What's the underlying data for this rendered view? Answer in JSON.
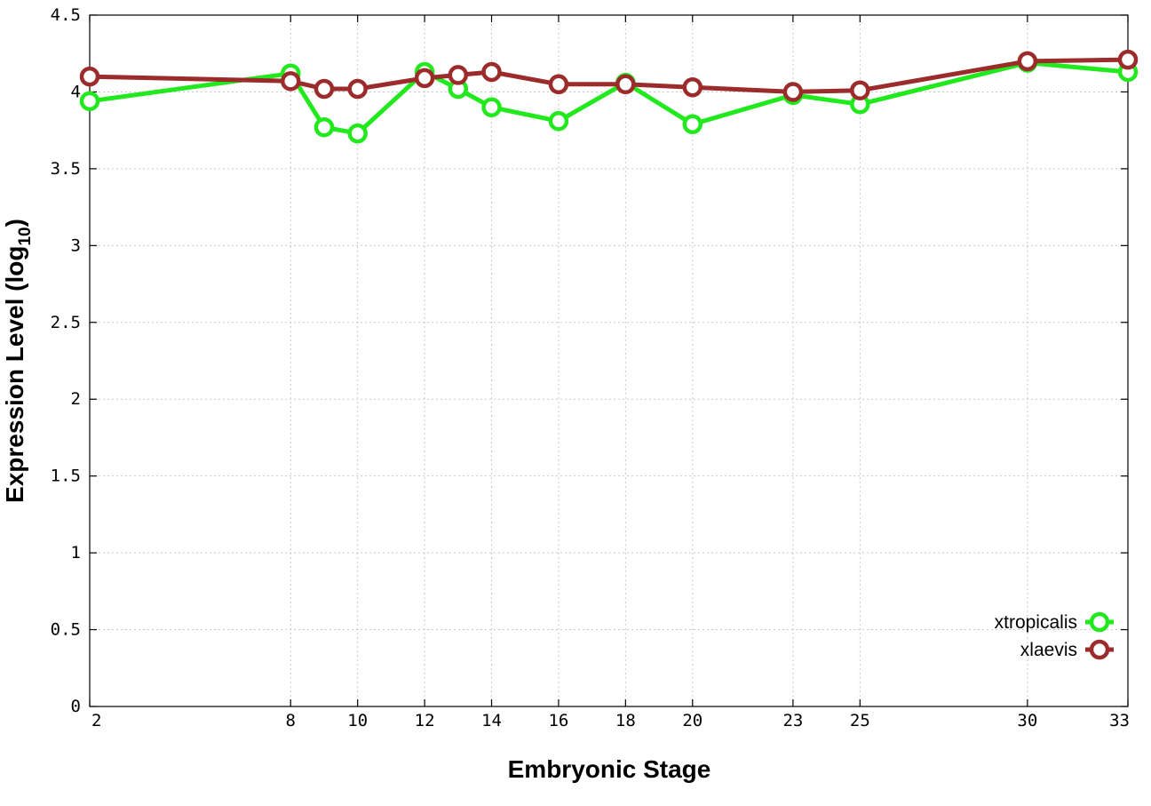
{
  "chart_data": {
    "type": "line",
    "x": [
      2,
      8,
      9,
      10,
      12,
      13,
      14,
      16,
      18,
      20,
      23,
      25,
      30,
      33
    ],
    "x_tick_labels": [
      "2",
      "8",
      "10",
      "12",
      "14",
      "16",
      "18",
      "20",
      "23",
      "25",
      "30",
      "33"
    ],
    "y_tick_labels": [
      "0",
      "0.5",
      "1",
      "1.5",
      "2",
      "2.5",
      "3",
      "3.5",
      "4",
      "4.5"
    ],
    "xlabel": "Embryonic Stage",
    "ylabel_main": "Expression Level (log",
    "ylabel_sub": "10",
    "ylabel_close": ")",
    "ylim": [
      0,
      4.5
    ],
    "grid": true,
    "legend_position": "bottom-right",
    "series": [
      {
        "name": "xtropicalis",
        "color": "#22e81e",
        "values": [
          3.94,
          4.12,
          3.77,
          3.73,
          4.13,
          4.02,
          3.9,
          3.81,
          4.06,
          3.79,
          3.98,
          3.92,
          4.19,
          4.13
        ]
      },
      {
        "name": "xlaevis",
        "color": "#9c2b2b",
        "values": [
          4.1,
          4.07,
          4.02,
          4.02,
          4.09,
          4.11,
          4.13,
          4.05,
          4.05,
          4.03,
          4.0,
          4.01,
          4.2,
          4.21
        ]
      }
    ]
  }
}
